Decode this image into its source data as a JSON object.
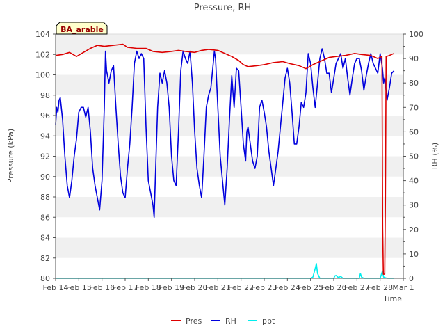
{
  "chart_data": {
    "type": "line",
    "title": "Pressure, RH",
    "station_label": "BA_arable",
    "xlabel": "Time",
    "ylabel_left": "Pressure (kPa)",
    "ylabel_right": "RH (%)",
    "x_range_days": [
      0,
      15
    ],
    "x_ticks": [
      {
        "day": 0,
        "label": "Feb 14"
      },
      {
        "day": 1,
        "label": "Feb 15"
      },
      {
        "day": 2,
        "label": "Feb 16"
      },
      {
        "day": 3,
        "label": "Feb 17"
      },
      {
        "day": 4,
        "label": "Feb 18"
      },
      {
        "day": 5,
        "label": "Feb 19"
      },
      {
        "day": 6,
        "label": "Feb 20"
      },
      {
        "day": 7,
        "label": "Feb 21"
      },
      {
        "day": 8,
        "label": "Feb 22"
      },
      {
        "day": 9,
        "label": "Feb 23"
      },
      {
        "day": 10,
        "label": "Feb 24"
      },
      {
        "day": 11,
        "label": "Feb 25"
      },
      {
        "day": 12,
        "label": "Feb 26"
      },
      {
        "day": 13,
        "label": "Feb 27"
      },
      {
        "day": 14,
        "label": "Feb 28"
      },
      {
        "day": 15,
        "label": "Mar 1"
      }
    ],
    "y_left_range": [
      80,
      104
    ],
    "y_left_ticks": [
      "80",
      "82",
      "84",
      "86",
      "88",
      "90",
      "92",
      "94",
      "96",
      "98",
      "100",
      "102",
      "104"
    ],
    "y_right_range": [
      0,
      100
    ],
    "y_right_ticks": [
      "0",
      "10",
      "20",
      "30",
      "40",
      "50",
      "60",
      "70",
      "80",
      "90",
      "100"
    ],
    "legend": [
      "Pres",
      "RH",
      "ppt"
    ],
    "colors": {
      "Pres": "#dd0000",
      "RH": "#0000dd",
      "ppt": "#00eeee",
      "band": "#f0f0f0",
      "label_bg": "#ffffcc",
      "label_text": "#990000"
    },
    "series": [
      {
        "name": "Pres",
        "axis": "left",
        "points": [
          [
            0.0,
            101.9
          ],
          [
            0.3,
            102.0
          ],
          [
            0.6,
            102.2
          ],
          [
            0.9,
            101.8
          ],
          [
            1.2,
            102.2
          ],
          [
            1.5,
            102.6
          ],
          [
            1.8,
            102.9
          ],
          [
            2.1,
            102.8
          ],
          [
            2.5,
            102.9
          ],
          [
            2.9,
            103.0
          ],
          [
            3.1,
            102.7
          ],
          [
            3.5,
            102.6
          ],
          [
            3.9,
            102.6
          ],
          [
            4.2,
            102.3
          ],
          [
            4.6,
            102.2
          ],
          [
            5.0,
            102.3
          ],
          [
            5.3,
            102.4
          ],
          [
            5.6,
            102.3
          ],
          [
            6.0,
            102.2
          ],
          [
            6.3,
            102.4
          ],
          [
            6.6,
            102.5
          ],
          [
            7.0,
            102.4
          ],
          [
            7.3,
            102.1
          ],
          [
            7.6,
            101.8
          ],
          [
            7.9,
            101.4
          ],
          [
            8.1,
            101.0
          ],
          [
            8.3,
            100.8
          ],
          [
            8.7,
            100.9
          ],
          [
            9.0,
            101.0
          ],
          [
            9.4,
            101.2
          ],
          [
            9.8,
            101.3
          ],
          [
            10.1,
            101.1
          ],
          [
            10.5,
            100.9
          ],
          [
            10.8,
            100.6
          ],
          [
            11.1,
            101.0
          ],
          [
            11.5,
            101.4
          ],
          [
            11.8,
            101.7
          ],
          [
            12.1,
            101.8
          ],
          [
            12.5,
            101.9
          ],
          [
            12.9,
            102.1
          ],
          [
            13.2,
            102.0
          ],
          [
            13.6,
            101.9
          ],
          [
            13.9,
            101.6
          ],
          [
            14.08,
            101.8
          ],
          [
            14.11,
            85.0
          ],
          [
            14.14,
            80.4
          ],
          [
            14.2,
            80.4
          ],
          [
            14.23,
            88.0
          ],
          [
            14.26,
            101.8
          ],
          [
            14.4,
            101.9
          ],
          [
            14.6,
            102.1
          ]
        ]
      },
      {
        "name": "RH",
        "axis": "right",
        "points": [
          [
            0.0,
            63
          ],
          [
            0.05,
            70
          ],
          [
            0.1,
            68
          ],
          [
            0.15,
            73
          ],
          [
            0.2,
            74
          ],
          [
            0.3,
            65
          ],
          [
            0.4,
            50
          ],
          [
            0.5,
            38
          ],
          [
            0.6,
            33
          ],
          [
            0.7,
            40
          ],
          [
            0.8,
            50
          ],
          [
            0.9,
            57
          ],
          [
            1.0,
            68
          ],
          [
            1.1,
            70
          ],
          [
            1.2,
            70
          ],
          [
            1.3,
            66
          ],
          [
            1.4,
            70
          ],
          [
            1.5,
            60
          ],
          [
            1.6,
            45
          ],
          [
            1.7,
            38
          ],
          [
            1.8,
            33
          ],
          [
            1.9,
            28
          ],
          [
            2.0,
            40
          ],
          [
            2.1,
            70
          ],
          [
            2.15,
            93
          ],
          [
            2.2,
            85
          ],
          [
            2.3,
            80
          ],
          [
            2.4,
            85
          ],
          [
            2.5,
            87
          ],
          [
            2.6,
            70
          ],
          [
            2.7,
            55
          ],
          [
            2.8,
            42
          ],
          [
            2.9,
            35
          ],
          [
            3.0,
            33
          ],
          [
            3.1,
            45
          ],
          [
            3.2,
            55
          ],
          [
            3.3,
            70
          ],
          [
            3.4,
            88
          ],
          [
            3.5,
            93
          ],
          [
            3.6,
            90
          ],
          [
            3.7,
            92
          ],
          [
            3.8,
            90
          ],
          [
            3.9,
            62
          ],
          [
            4.0,
            40
          ],
          [
            4.1,
            35
          ],
          [
            4.2,
            30
          ],
          [
            4.25,
            25
          ],
          [
            4.3,
            40
          ],
          [
            4.4,
            70
          ],
          [
            4.5,
            84
          ],
          [
            4.6,
            80
          ],
          [
            4.7,
            85
          ],
          [
            4.8,
            80
          ],
          [
            4.9,
            70
          ],
          [
            5.0,
            50
          ],
          [
            5.1,
            40
          ],
          [
            5.2,
            38
          ],
          [
            5.3,
            60
          ],
          [
            5.4,
            85
          ],
          [
            5.5,
            93
          ],
          [
            5.6,
            90
          ],
          [
            5.7,
            88
          ],
          [
            5.8,
            93
          ],
          [
            5.9,
            80
          ],
          [
            6.0,
            60
          ],
          [
            6.1,
            45
          ],
          [
            6.2,
            38
          ],
          [
            6.3,
            33
          ],
          [
            6.4,
            50
          ],
          [
            6.5,
            70
          ],
          [
            6.6,
            75
          ],
          [
            6.7,
            78
          ],
          [
            6.8,
            88
          ],
          [
            6.85,
            93
          ],
          [
            6.9,
            90
          ],
          [
            7.0,
            70
          ],
          [
            7.1,
            50
          ],
          [
            7.2,
            40
          ],
          [
            7.3,
            30
          ],
          [
            7.4,
            45
          ],
          [
            7.5,
            65
          ],
          [
            7.6,
            83
          ],
          [
            7.7,
            70
          ],
          [
            7.8,
            86
          ],
          [
            7.9,
            85
          ],
          [
            8.0,
            70
          ],
          [
            8.1,
            55
          ],
          [
            8.2,
            48
          ],
          [
            8.25,
            60
          ],
          [
            8.3,
            62
          ],
          [
            8.4,
            55
          ],
          [
            8.5,
            48
          ],
          [
            8.6,
            45
          ],
          [
            8.7,
            50
          ],
          [
            8.8,
            70
          ],
          [
            8.9,
            73
          ],
          [
            9.0,
            68
          ],
          [
            9.1,
            62
          ],
          [
            9.2,
            52
          ],
          [
            9.3,
            45
          ],
          [
            9.4,
            38
          ],
          [
            9.5,
            45
          ],
          [
            9.6,
            52
          ],
          [
            9.7,
            62
          ],
          [
            9.8,
            72
          ],
          [
            9.9,
            82
          ],
          [
            10.0,
            86
          ],
          [
            10.1,
            80
          ],
          [
            10.2,
            68
          ],
          [
            10.3,
            55
          ],
          [
            10.4,
            55
          ],
          [
            10.5,
            62
          ],
          [
            10.6,
            72
          ],
          [
            10.7,
            70
          ],
          [
            10.8,
            76
          ],
          [
            10.9,
            92
          ],
          [
            11.0,
            88
          ],
          [
            11.1,
            78
          ],
          [
            11.2,
            70
          ],
          [
            11.3,
            80
          ],
          [
            11.4,
            90
          ],
          [
            11.5,
            94
          ],
          [
            11.6,
            90
          ],
          [
            11.7,
            84
          ],
          [
            11.8,
            84
          ],
          [
            11.9,
            76
          ],
          [
            12.0,
            82
          ],
          [
            12.1,
            88
          ],
          [
            12.2,
            90
          ],
          [
            12.3,
            92
          ],
          [
            12.4,
            86
          ],
          [
            12.5,
            90
          ],
          [
            12.6,
            82
          ],
          [
            12.7,
            75
          ],
          [
            12.8,
            82
          ],
          [
            12.9,
            88
          ],
          [
            13.0,
            90
          ],
          [
            13.1,
            90
          ],
          [
            13.2,
            85
          ],
          [
            13.3,
            77
          ],
          [
            13.4,
            83
          ],
          [
            13.5,
            88
          ],
          [
            13.6,
            92
          ],
          [
            13.7,
            88
          ],
          [
            13.8,
            86
          ],
          [
            13.9,
            84
          ],
          [
            14.0,
            92
          ],
          [
            14.1,
            86
          ],
          [
            14.15,
            80
          ],
          [
            14.2,
            82
          ],
          [
            14.3,
            73
          ],
          [
            14.4,
            78
          ],
          [
            14.5,
            84
          ],
          [
            14.6,
            85
          ]
        ]
      },
      {
        "name": "ppt",
        "axis": "right",
        "points": [
          [
            0.0,
            0
          ],
          [
            11.0,
            0
          ],
          [
            11.1,
            0.5
          ],
          [
            11.2,
            4
          ],
          [
            11.25,
            6
          ],
          [
            11.3,
            2
          ],
          [
            11.4,
            0
          ],
          [
            12.0,
            0
          ],
          [
            12.05,
            1
          ],
          [
            12.1,
            1.2
          ],
          [
            12.2,
            0.3
          ],
          [
            12.3,
            0.8
          ],
          [
            12.4,
            0
          ],
          [
            13.1,
            0
          ],
          [
            13.15,
            2
          ],
          [
            13.2,
            0.5
          ],
          [
            13.3,
            0
          ],
          [
            14.0,
            0
          ],
          [
            14.1,
            3
          ],
          [
            14.15,
            0.5
          ],
          [
            14.3,
            0
          ],
          [
            14.6,
            0
          ]
        ]
      }
    ]
  }
}
